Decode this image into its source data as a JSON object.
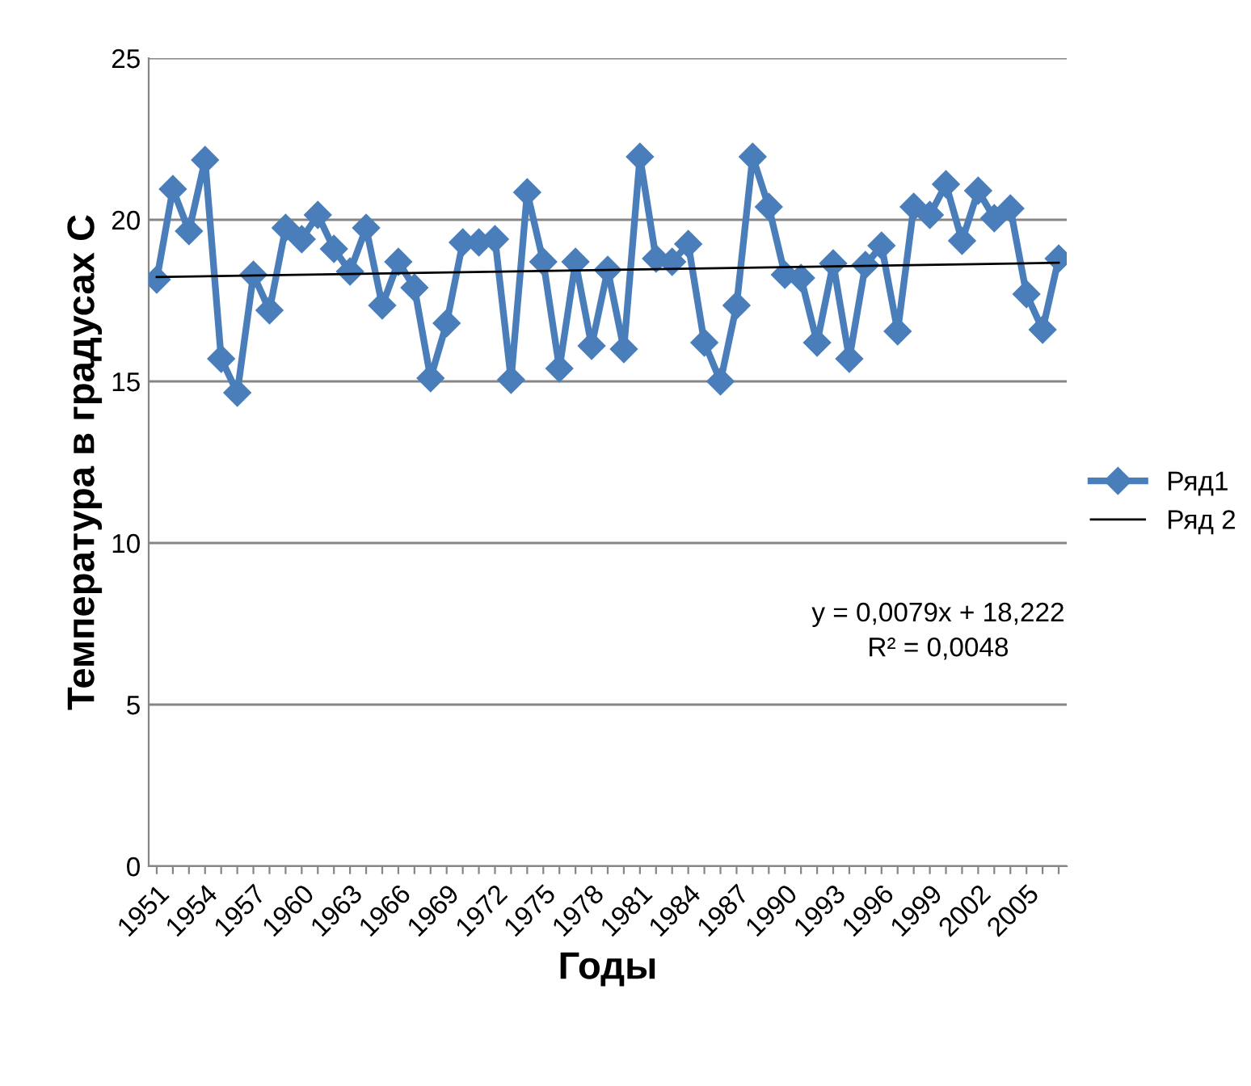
{
  "chart_data": {
    "type": "line",
    "xlabel": "Годы",
    "ylabel": "Температура в градусах С",
    "categories": [
      "1951",
      null,
      null,
      "1954",
      null,
      null,
      "1957",
      null,
      null,
      "1960",
      null,
      null,
      "1963",
      null,
      null,
      "1966",
      null,
      null,
      "1969",
      null,
      null,
      "1972",
      null,
      null,
      "1975",
      null,
      null,
      "1978",
      null,
      null,
      "1981",
      null,
      null,
      "1984",
      null,
      null,
      "1987",
      null,
      null,
      "1990",
      null,
      null,
      "1993",
      null,
      null,
      "1996",
      null,
      null,
      "1999",
      null,
      null,
      "2002",
      null,
      null,
      "2005",
      null,
      null
    ],
    "series": [
      {
        "name": "Ряд1",
        "color": "#4a7ebb",
        "marker": "diamond",
        "values": [
          18.15,
          20.95,
          19.65,
          21.85,
          15.7,
          14.65,
          18.3,
          17.2,
          19.75,
          19.4,
          20.15,
          19.1,
          18.4,
          19.75,
          17.35,
          18.7,
          17.9,
          15.1,
          16.8,
          19.3,
          19.3,
          19.4,
          15.05,
          20.85,
          18.7,
          15.4,
          18.7,
          16.1,
          18.45,
          16.0,
          21.95,
          18.8,
          18.7,
          19.25,
          16.2,
          15.0,
          17.35,
          21.95,
          20.4,
          18.3,
          18.2,
          16.2,
          18.65,
          15.7,
          18.6,
          19.2,
          16.55,
          20.4,
          20.15,
          21.1,
          19.35,
          20.9,
          20.05,
          20.35,
          17.7,
          16.6,
          18.8
        ]
      },
      {
        "name": "Ряд 2",
        "color": "#000000",
        "marker": "none",
        "values": [
          18.23,
          null,
          null,
          null,
          null,
          null,
          null,
          null,
          null,
          null,
          null,
          null,
          null,
          null,
          null,
          null,
          null,
          null,
          null,
          null,
          null,
          null,
          null,
          null,
          null,
          null,
          null,
          null,
          null,
          null,
          null,
          null,
          null,
          null,
          null,
          null,
          null,
          null,
          null,
          null,
          null,
          null,
          null,
          null,
          null,
          null,
          null,
          null,
          null,
          null,
          null,
          null,
          null,
          null,
          null,
          null,
          18.67
        ]
      }
    ],
    "ylim": [
      0,
      25
    ],
    "yticks": [
      0,
      5,
      10,
      15,
      20,
      25
    ],
    "grid": "y",
    "legend": "right",
    "annotations": [
      "y = 0,0079x + 18,222\nR² = 0,0048"
    ]
  }
}
